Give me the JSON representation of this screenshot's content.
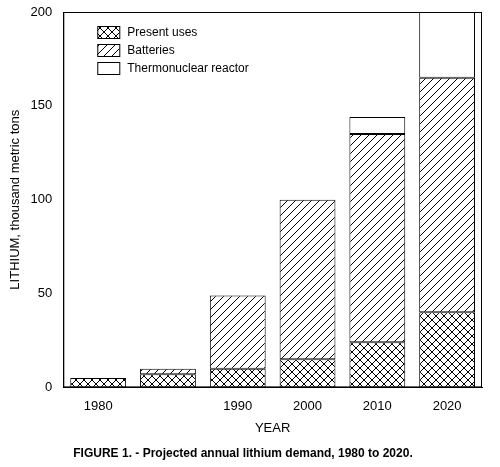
{
  "chart_data": {
    "type": "bar",
    "title": "FIGURE 1. - Projected annual lithium demand, 1980 to 2020.",
    "x_label": "YEAR",
    "y_label": "LITHIUM, thousand metric tons",
    "categories": [
      "1980",
      null,
      "1990",
      "2000",
      "2010",
      "2020"
    ],
    "series": [
      {
        "name": "Present uses",
        "color": "#000000",
        "values": [
          5,
          7,
          10,
          15,
          24,
          40
        ]
      },
      {
        "name": "Batteries",
        "color": "#000000",
        "values": [
          null,
          3,
          39,
          85,
          111,
          125
        ]
      },
      {
        "name": "Thermonuclear reactor",
        "color": "#ffffff",
        "values": [
          null,
          null,
          null,
          null,
          9,
          35
        ]
      }
    ],
    "stacked": true,
    "ylim": [
      0,
      200
    ],
    "yticks": [
      0,
      50,
      100,
      150,
      200
    ],
    "grid": false,
    "legend": "upper left"
  }
}
